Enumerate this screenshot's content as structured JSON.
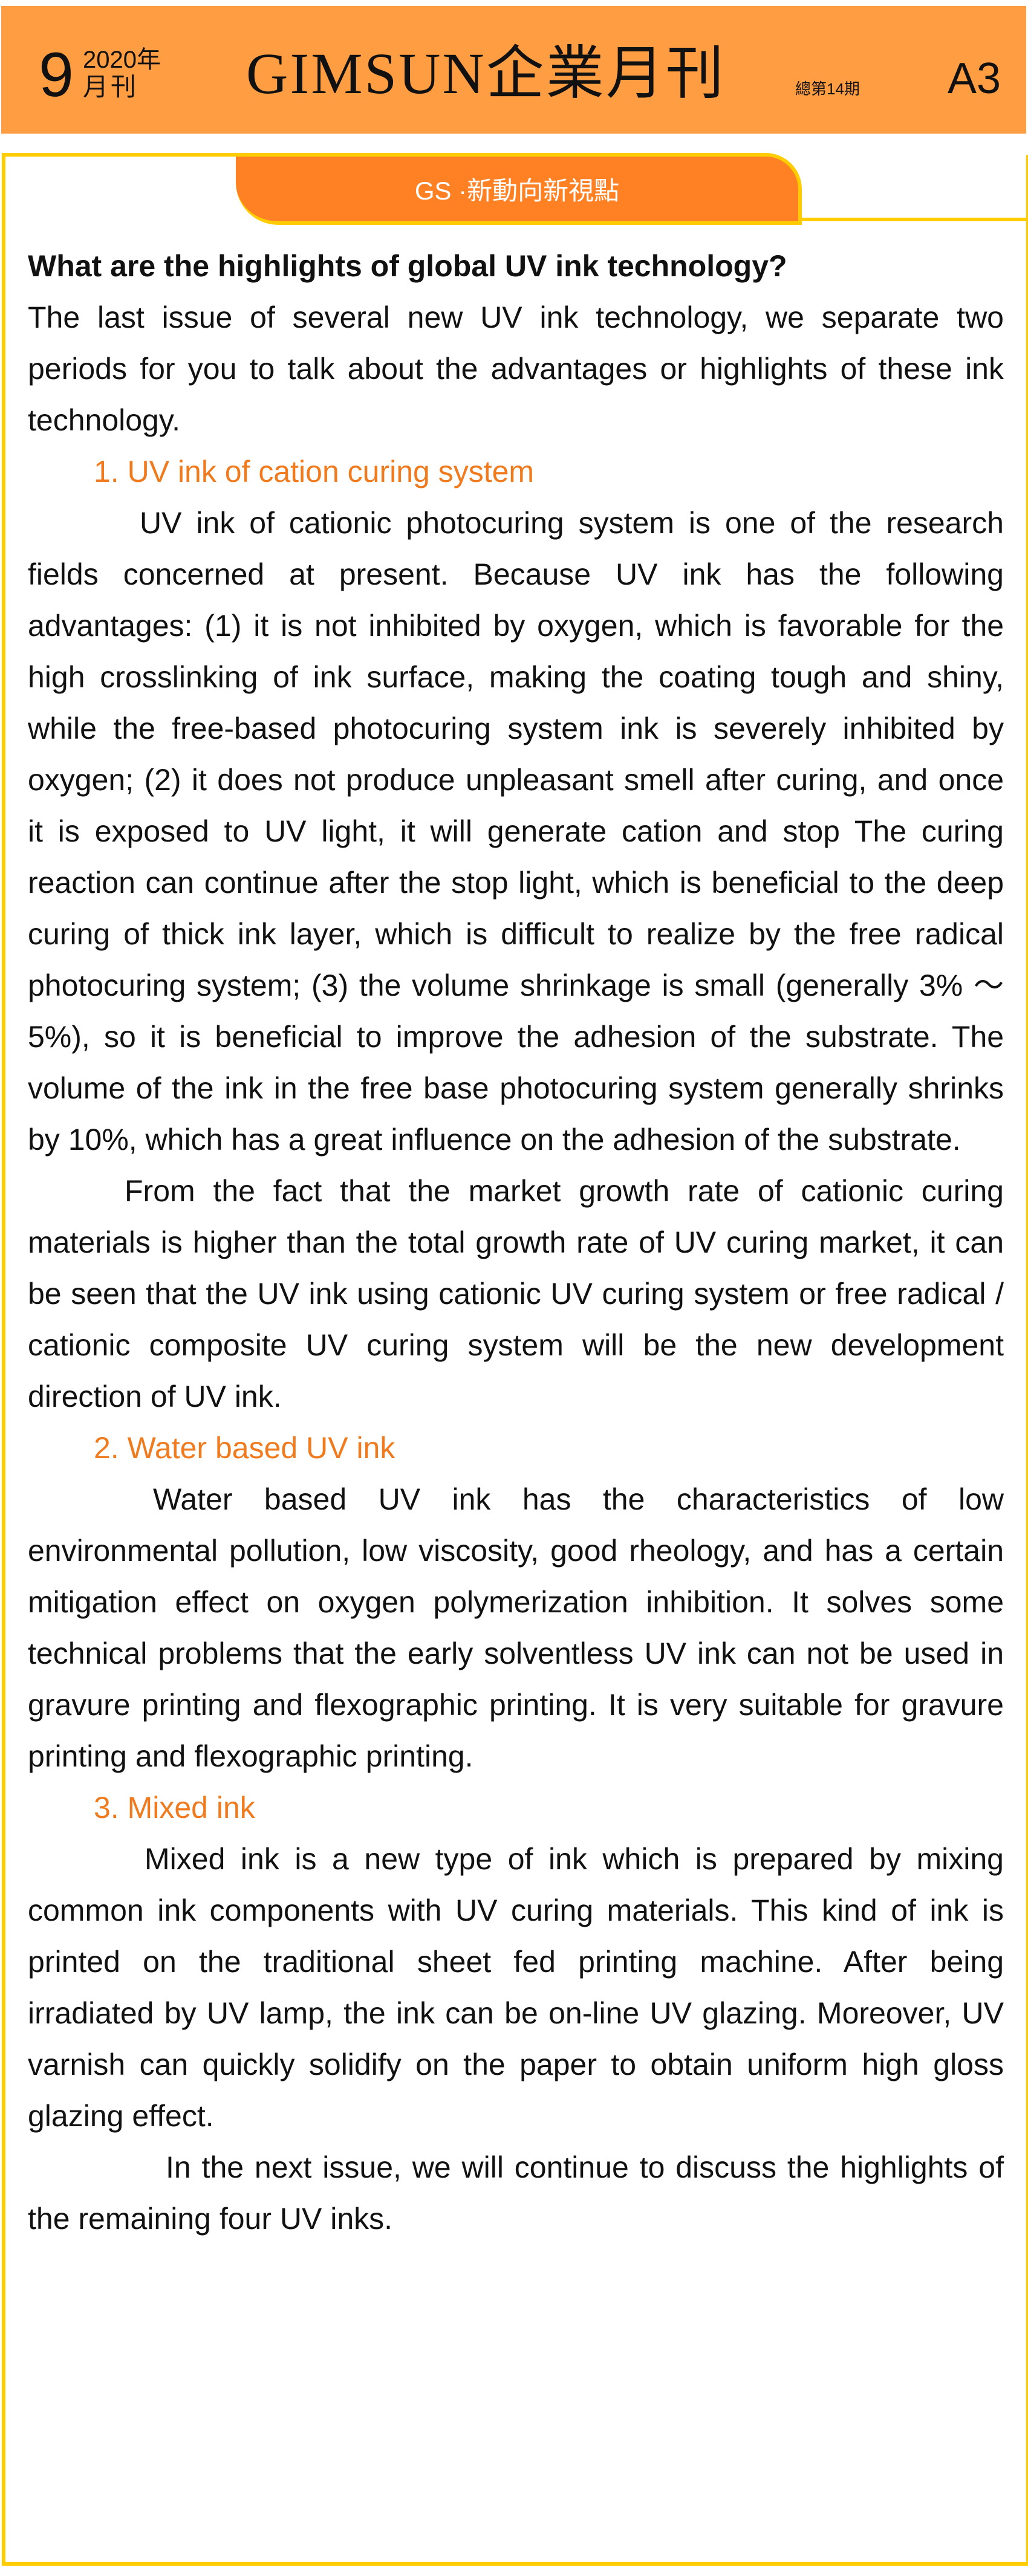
{
  "masthead": {
    "month": "9",
    "year": "2020年",
    "kind": "月刊",
    "title": "GIMSUN企業月刊",
    "total_issue": "總第14期",
    "page_code": "A3",
    "background_color": "#FF9D42"
  },
  "section_tab": {
    "label": "GS ·新動向新視點",
    "color": "#FF8124",
    "border_color": "#FFCC00"
  },
  "article": {
    "question": "What are the highlights of global UV ink technology?",
    "intro": "The last issue of several new UV ink technology, we separate two periods for you to talk about the advantages or highlights of these ink technology.",
    "heading_color": "#F07A1E",
    "sections": [
      {
        "heading": "1. UV ink of cation curing system",
        "paragraphs": [
          "UV ink of cationic photocuring system is one of the research fields concerned at present. Because UV ink has the following advantages: (1) it is not inhibited by oxygen, which is favorable for the high crosslinking of ink surface, making the coating tough and shiny, while the free-based photocuring system ink is severely inhibited by oxygen; (2) it does not produce unpleasant smell after curing, and once it is exposed to UV light, it will generate cation and stop The curing reaction can continue after the stop light, which is beneficial to the deep curing of thick ink layer, which is difficult to realize by the free radical photocuring system; (3) the volume shrinkage is small (generally 3% ～ 5%), so it is beneficial to improve the adhesion of the substrate. The volume of the ink in the free base photocuring system generally shrinks by 10%, which has a great influence on the adhesion of the substrate.",
          "From the fact that the market growth rate of cationic curing materials is higher than the total growth rate of UV curing market, it can be seen that the UV ink using cationic UV curing system or free radical / cationic composite UV curing system will be the new development direction of UV ink."
        ]
      },
      {
        "heading": "2. Water based UV ink",
        "paragraphs": [
          "Water based UV ink has the characteristics of low environmental pollution, low viscosity, good rheology, and has a certain mitigation effect on oxygen polymerization inhibition. It solves some technical problems that the early solventless UV ink can not be used in gravure printing and flexographic printing. It is very suitable for gravure printing and flexographic printing."
        ]
      },
      {
        "heading": "3. Mixed ink",
        "paragraphs": [
          "Mixed ink is a new type of ink which is prepared by mixing common ink components with UV curing materials. This kind of ink is printed on the traditional sheet fed printing machine. After being irradiated by UV lamp, the ink can be on-line UV glazing. Moreover, UV varnish can quickly solidify on the paper to obtain uniform high gloss glazing effect."
        ]
      }
    ],
    "closing": "In the next issue, we will continue to discuss the highlights of the remaining four UV inks."
  }
}
